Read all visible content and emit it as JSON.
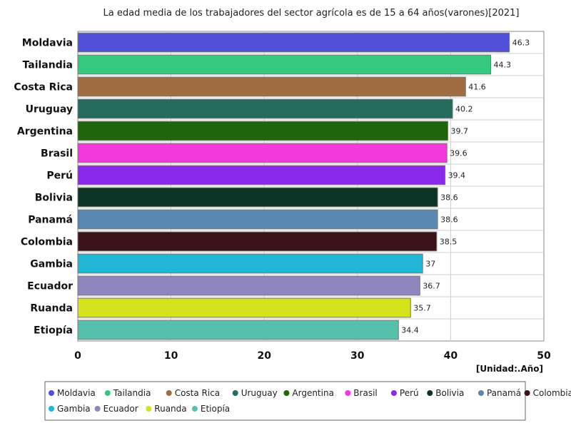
{
  "chart_data": {
    "type": "bar",
    "orientation": "horizontal",
    "title": "La edad media de los trabajadores del sector agrícola es de 15 a 64 años(varones)[2021]",
    "unit_label": "[Unidad:.Año]",
    "categories": [
      "Moldavia",
      "Tailandia",
      "Costa Rica",
      "Uruguay",
      "Argentina",
      "Brasil",
      "Perú",
      "Bolivia",
      "Panamá",
      "Colombia",
      "Gambia",
      "Ecuador",
      "Ruanda",
      "Etiopía"
    ],
    "values": [
      46.3,
      44.3,
      41.6,
      40.2,
      39.7,
      39.6,
      39.4,
      38.6,
      38.6,
      38.5,
      37,
      36.7,
      35.7,
      34.4
    ],
    "colors": [
      "#5050d8",
      "#36c87e",
      "#a06c42",
      "#246b5e",
      "#1f650b",
      "#f23adb",
      "#8a28ec",
      "#0b3326",
      "#5887b1",
      "#3c1219",
      "#22b6d6",
      "#8f85bf",
      "#d5e31c",
      "#55c1ab"
    ],
    "xlim": [
      0,
      50
    ],
    "xticks": [
      0,
      10,
      20,
      30,
      40,
      50
    ],
    "grid": true,
    "legend_position": "bottom"
  }
}
